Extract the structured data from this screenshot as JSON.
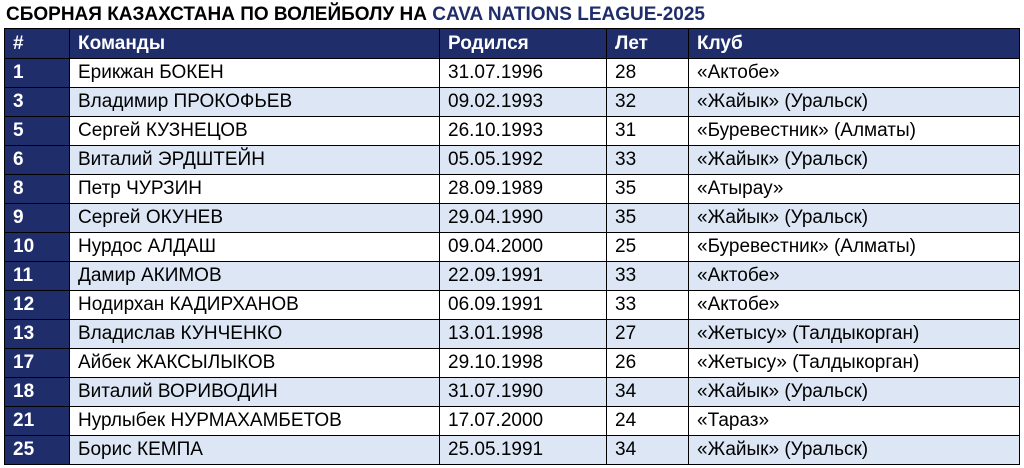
{
  "title": {
    "prefix": "СБОРНАЯ КАЗАХСТАНА ПО ВОЛЕЙБОЛУ НА ",
    "accent": "CAVA NATIONS LEAGUE-2025",
    "accent_color": "#1f2d6b"
  },
  "table": {
    "header_color": "#1f2d6b",
    "stripe_color": "#dce6f4",
    "columns": [
      "#",
      "Команды",
      "Родился",
      "Лет",
      "Клуб"
    ],
    "rows": [
      {
        "num": "1",
        "name": "Ерикжан БОКЕН",
        "born": "31.07.1996",
        "age": "28",
        "club": "«Актобе»"
      },
      {
        "num": "3",
        "name": "Владимир ПРОКОФЬЕВ",
        "born": "09.02.1993",
        "age": "32",
        "club": "«Жайык» (Уральск)"
      },
      {
        "num": "5",
        "name": "Сергей КУЗНЕЦОВ",
        "born": "26.10.1993",
        "age": "31",
        "club": "«Буревестник» (Алматы)"
      },
      {
        "num": "6",
        "name": "Виталий ЭРДШТЕЙН",
        "born": "05.05.1992",
        "age": "33",
        "club": "«Жайык» (Уральск)"
      },
      {
        "num": "8",
        "name": "Петр ЧУРЗИН",
        "born": "28.09.1989",
        "age": "35",
        "club": "«Атырау»"
      },
      {
        "num": "9",
        "name": "Сергей ОКУНЕВ",
        "born": "29.04.1990",
        "age": "35",
        "club": "«Жайык» (Уральск)"
      },
      {
        "num": "10",
        "name": "Нурдос АЛДАШ",
        "born": "09.04.2000",
        "age": "25",
        "club": "«Буревестник» (Алматы)"
      },
      {
        "num": "11",
        "name": "Дамир АКИМОВ",
        "born": "22.09.1991",
        "age": "33",
        "club": "«Актобе»"
      },
      {
        "num": "12",
        "name": "Нодирхан КАДИРХАНОВ",
        "born": "06.09.1991",
        "age": "33",
        "club": "«Актобе»"
      },
      {
        "num": "13",
        "name": "Владислав КУНЧЕНКО",
        "born": "13.01.1998",
        "age": "27",
        "club": "«Жетысу» (Талдыкорган)"
      },
      {
        "num": "17",
        "name": "Айбек ЖАКСЫЛЫКОВ",
        "born": "29.10.1998",
        "age": "26",
        "club": "«Жетысу» (Талдыкорган)"
      },
      {
        "num": "18",
        "name": "Виталий ВОРИВОДИН",
        "born": "31.07.1990",
        "age": "34",
        "club": "«Жайык» (Уральск)"
      },
      {
        "num": "21",
        "name": "Нурлыбек НУРМАХАМБЕТОВ",
        "born": "17.07.2000",
        "age": "24",
        "club": "«Тараз»"
      },
      {
        "num": "25",
        "name": "Борис КЕМПА",
        "born": "25.05.1991",
        "age": "34",
        "club": "«Жайык» (Уральск)"
      }
    ]
  }
}
